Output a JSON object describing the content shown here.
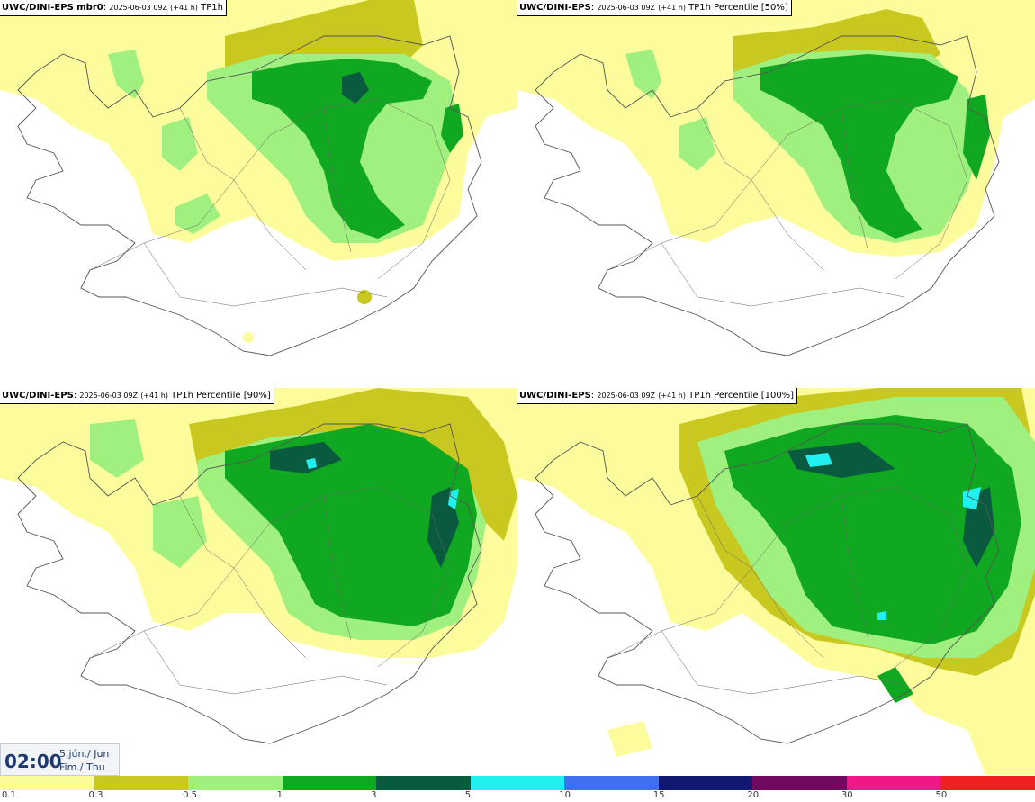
{
  "panels": [
    {
      "model": "UWC/DINI-EPS mbr0",
      "run": "2025-06-03 09Z",
      "lead": "(+41 h)",
      "field": "TP1h"
    },
    {
      "model": "UWC/DINI-EPS",
      "run": "2025-06-03 09Z",
      "lead": "(+41 h)",
      "field": "TP1h Percentile [50%]"
    },
    {
      "model": "UWC/DINI-EPS",
      "run": "2025-06-03 09Z",
      "lead": "(+41 h)",
      "field": "TP1h Percentile [90%]"
    },
    {
      "model": "UWC/DINI-EPS",
      "run": "2025-06-03 09Z",
      "lead": "(+41 h)",
      "field": "TP1h Percentile [100%]"
    }
  ],
  "valid_time": {
    "clock": "02:00",
    "date_line1": "5.jún./ Jun",
    "date_line2": "Fim./ Thu"
  },
  "legend": {
    "labels": [
      "0.1",
      "0.3",
      "0.5",
      "1",
      "3",
      "5",
      "10",
      "15",
      "20",
      "30",
      "50"
    ],
    "colors": [
      "#fcfc9c",
      "#c8c820",
      "#a0f080",
      "#10a820",
      "#0a5a40",
      "#20f0f0",
      "#4070f0",
      "#101870",
      "#700a60",
      "#f01888",
      "#f02020"
    ]
  },
  "precip_colors": {
    "light": "#fcfc9c",
    "olive": "#c8c820",
    "lightgreen": "#a0f080",
    "green": "#10a820",
    "darkgreen": "#0a5a40",
    "cyan": "#20f0f0"
  }
}
